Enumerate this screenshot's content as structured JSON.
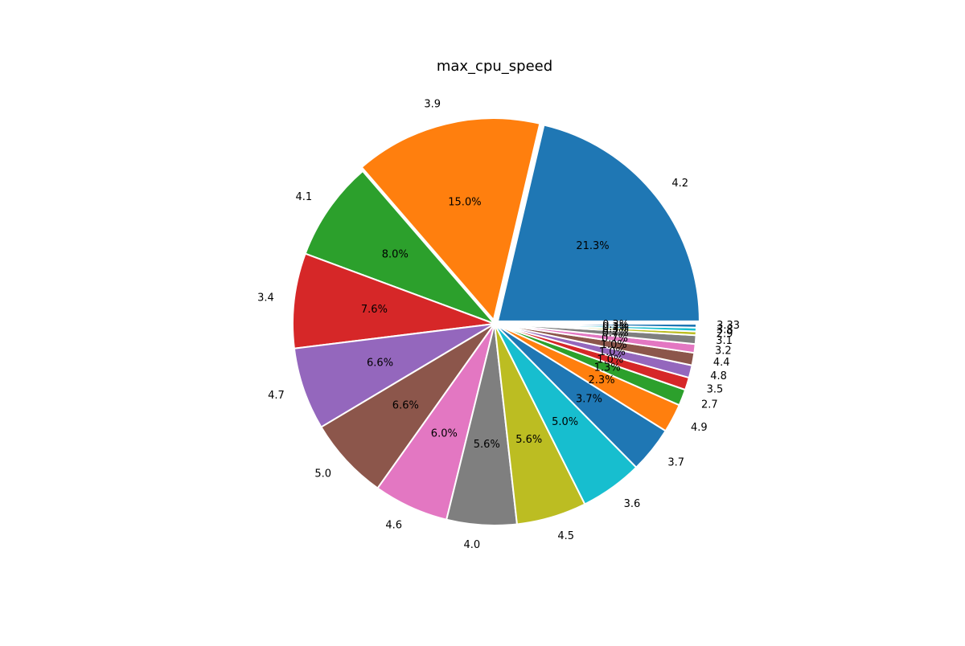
{
  "chart_data": {
    "type": "pie",
    "title": "max_cpu_speed",
    "categories": [
      "4.2",
      "3.9",
      "4.1",
      "3.4",
      "4.7",
      "5.0",
      "4.6",
      "4.0",
      "4.5",
      "3.6",
      "3.7",
      "4.9",
      "2.7",
      "3.5",
      "4.8",
      "4.4",
      "3.2",
      "3.1",
      "2.9",
      "3.8",
      "3.33"
    ],
    "values": [
      21.3,
      15.0,
      8.0,
      7.6,
      6.6,
      6.6,
      6.0,
      5.6,
      5.6,
      5.0,
      3.7,
      2.3,
      1.3,
      1.0,
      1.0,
      1.0,
      0.7,
      0.7,
      0.3,
      0.3,
      0.3
    ],
    "percent_labels": [
      "21.3%",
      "15.0%",
      "8.0%",
      "7.6%",
      "6.6%",
      "6.6%",
      "6.0%",
      "5.6%",
      "5.6%",
      "5.0%",
      "3.7%",
      "2.3%",
      "1.3%",
      "1.0%",
      "1.0%",
      "1.0%",
      "0.7%",
      "0.7%",
      "0.3%",
      "0.3%",
      "0.3%"
    ],
    "colors": [
      "#1f77b4",
      "#ff7f0e",
      "#2ca02c",
      "#d62728",
      "#9467bd",
      "#8c564b",
      "#e377c2",
      "#7f7f7f",
      "#bcbd22",
      "#17becf",
      "#1f77b4",
      "#ff7f0e",
      "#2ca02c",
      "#d62728",
      "#9467bd",
      "#8c564b",
      "#e377c2",
      "#7f7f7f",
      "#bcbd22",
      "#17becf",
      "#1f77b4"
    ],
    "start_angle_deg": 0,
    "direction": "counterclockwise",
    "explode": [
      0.02,
      0.02,
      0.0,
      0.0,
      0.0,
      0.0,
      0.0,
      0.0,
      0.0,
      0.0,
      0.0,
      0.0,
      0.0,
      0.0,
      0.0,
      0.0,
      0.0,
      0.0,
      0.0,
      0.0,
      0.0
    ],
    "legend": "none"
  }
}
